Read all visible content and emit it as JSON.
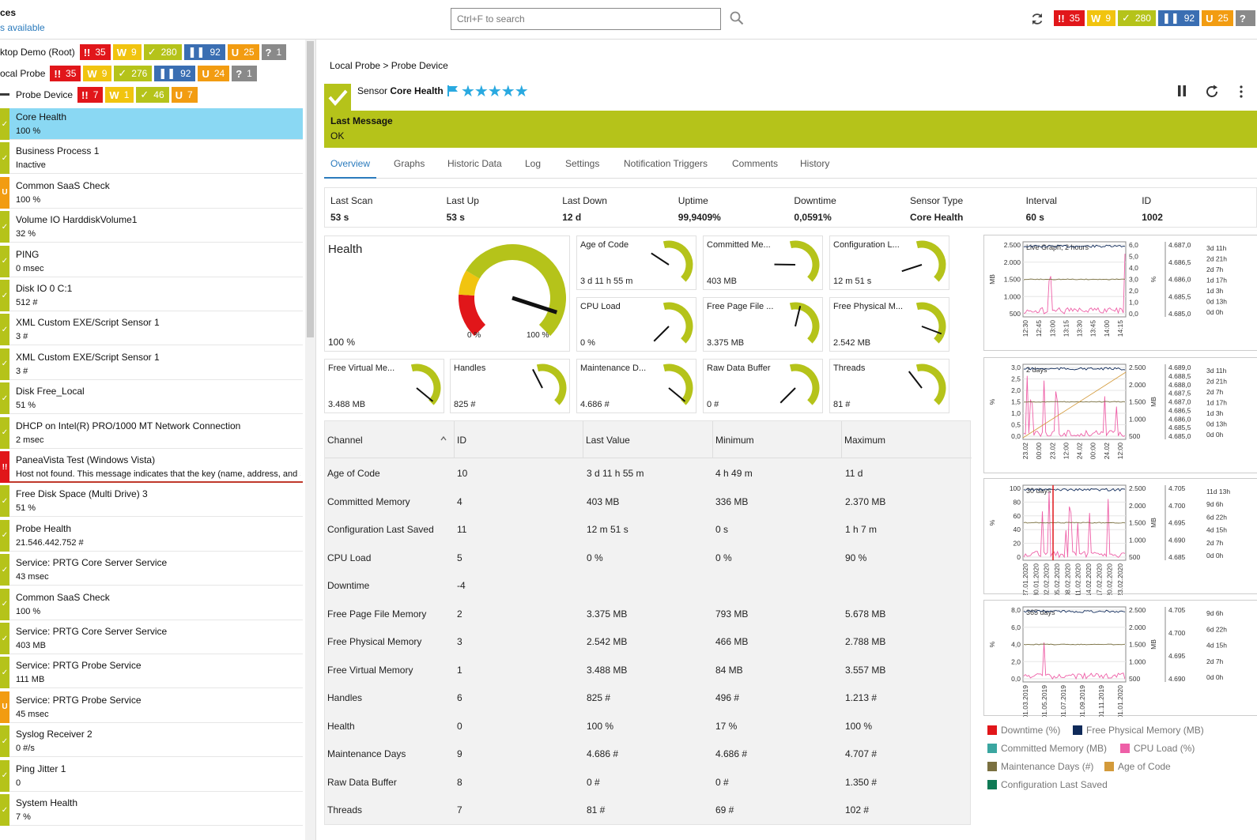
{
  "header": {
    "title_fragment": "ces",
    "subtitle_fragment": "s available",
    "search_placeholder": "Ctrl+F to search",
    "counts": [
      "35",
      "9",
      "280",
      "92",
      "25"
    ]
  },
  "tree": [
    {
      "label": "ktop Demo (Root)",
      "badges": [
        [
          "red",
          "!!",
          "35"
        ],
        [
          "yellow",
          "W",
          "9"
        ],
        [
          "green",
          "✓",
          "280"
        ],
        [
          "blue",
          "❚❚",
          "92"
        ],
        [
          "orange",
          "U",
          "25"
        ],
        [
          "gray",
          "?",
          "1"
        ]
      ]
    },
    {
      "label": "ocal Probe",
      "badges": [
        [
          "red",
          "!!",
          "35"
        ],
        [
          "yellow",
          "W",
          "9"
        ],
        [
          "green",
          "✓",
          "276"
        ],
        [
          "blue",
          "❚❚",
          "92"
        ],
        [
          "orange",
          "U",
          "24"
        ],
        [
          "gray",
          "?",
          "1"
        ]
      ]
    },
    {
      "label": "Probe Device",
      "badges": [
        [
          "red",
          "!!",
          "7"
        ],
        [
          "yellow",
          "W",
          "1"
        ],
        [
          "green",
          "✓",
          "46"
        ],
        [
          "orange",
          "U",
          "7"
        ]
      ]
    }
  ],
  "sensors": [
    {
      "name": "Core Health",
      "value": "100 %",
      "status": "green",
      "selected": true
    },
    {
      "name": "Business Process 1",
      "value": "Inactive",
      "status": "green"
    },
    {
      "name": "Common SaaS Check",
      "value": "100 %",
      "status": "orange"
    },
    {
      "name": "Volume IO HarddiskVolume1",
      "value": "32 %",
      "status": "green"
    },
    {
      "name": "PING",
      "value": "0 msec",
      "status": "green"
    },
    {
      "name": "Disk IO 0 C:1",
      "value": "512 #",
      "status": "green"
    },
    {
      "name": "XML Custom EXE/Script Sensor 1",
      "value": "3 #",
      "status": "green"
    },
    {
      "name": "XML Custom EXE/Script Sensor 1",
      "value": "3 #",
      "status": "green"
    },
    {
      "name": "Disk Free_Local",
      "value": "51 %",
      "status": "green"
    },
    {
      "name": "DHCP on Intel(R) PRO/1000 MT Network Connection",
      "value": "2 msec",
      "status": "green"
    },
    {
      "name": "PaneaVista Test (Windows Vista)",
      "value": "Host not found. This message indicates that the key (name, address, and s...",
      "status": "red"
    },
    {
      "name": "Free Disk Space (Multi Drive) 3",
      "value": "51 %",
      "status": "green"
    },
    {
      "name": "Probe Health",
      "value": "21.546.442.752 #",
      "status": "green"
    },
    {
      "name": "Service: PRTG Core Server Service",
      "value": "43 msec",
      "status": "green"
    },
    {
      "name": "Common SaaS Check",
      "value": "100 %",
      "status": "green"
    },
    {
      "name": "Service: PRTG Core Server Service",
      "value": "403 MB",
      "status": "green"
    },
    {
      "name": "Service: PRTG Probe Service",
      "value": "111 MB",
      "status": "green"
    },
    {
      "name": "Service: PRTG Probe Service",
      "value": "45 msec",
      "status": "orange"
    },
    {
      "name": "Syslog Receiver 2",
      "value": "0 #/s",
      "status": "green"
    },
    {
      "name": "Ping Jitter 1",
      "value": "0",
      "status": "green"
    },
    {
      "name": "System Health",
      "value": "7 %",
      "status": "green"
    }
  ],
  "main": {
    "breadcrumb": "Local Probe > Probe Device",
    "sensor_prefix": "Sensor",
    "sensor_name": "Core Health",
    "last_message_label": "Last Message",
    "last_message": "OK",
    "tabs": [
      "Overview",
      "Graphs",
      "Historic Data",
      "Log",
      "Settings",
      "Notification Triggers",
      "Comments",
      "History"
    ],
    "stats": [
      {
        "label": "Last Scan",
        "value": "53 s"
      },
      {
        "label": "Last Up",
        "value": "53 s"
      },
      {
        "label": "Last Down",
        "value": "12 d"
      },
      {
        "label": "Uptime",
        "value": "99,9409%"
      },
      {
        "label": "Downtime",
        "value": "0,0591%"
      },
      {
        "label": "Sensor Type",
        "value": "Core Health"
      },
      {
        "label": "Interval",
        "value": "60 s"
      },
      {
        "label": "ID",
        "value": "1002"
      }
    ]
  },
  "health_gauge": {
    "title": "Health",
    "value": "100 %",
    "min_label": "0 %",
    "max_label": "100 %",
    "level": 1.0
  },
  "gauges": [
    {
      "title": "Age of Code",
      "value": "3 d 11 h 55 m",
      "level": 0.29
    },
    {
      "title": "Committed Me...",
      "value": "403 MB",
      "level": 0.17
    },
    {
      "title": "Configuration L...",
      "value": "12 m 51 s",
      "level": 0.1
    },
    {
      "title": "CPU Load",
      "value": "0 %",
      "level": 0.0
    },
    {
      "title": "Free Page File ...",
      "value": "3.375 MB",
      "level": 0.55
    },
    {
      "title": "Free Physical M...",
      "value": "2.542 MB",
      "level": 0.91
    },
    {
      "title": "Free Virtual Me...",
      "value": "3.488 MB",
      "level": 0.98
    },
    {
      "title": "Handles",
      "value": "825 #",
      "level": 0.4
    },
    {
      "title": "Maintenance D...",
      "value": "4.686 #",
      "level": 0.98
    },
    {
      "title": "Raw Data Buffer",
      "value": "0 #",
      "level": 0.0
    },
    {
      "title": "Threads",
      "value": "81 #",
      "level": 0.36
    }
  ],
  "table": {
    "headers": [
      "Channel",
      "ID",
      "Last Value",
      "Minimum",
      "Maximum"
    ],
    "rows": [
      [
        "Age of Code",
        "10",
        "3 d 11 h 55 m",
        "4 h 49 m",
        "11 d"
      ],
      [
        "Committed Memory",
        "4",
        "403 MB",
        "336 MB",
        "2.370 MB"
      ],
      [
        "Configuration Last Saved",
        "11",
        "12 m 51 s",
        "0 s",
        "1 h 7 m"
      ],
      [
        "CPU Load",
        "5",
        "0 %",
        "0 %",
        "90 %"
      ],
      [
        "Downtime",
        "-4",
        "",
        "",
        ""
      ],
      [
        "Free Page File Memory",
        "2",
        "3.375 MB",
        "793 MB",
        "5.678 MB"
      ],
      [
        "Free Physical Memory",
        "3",
        "2.542 MB",
        "466 MB",
        "2.788 MB"
      ],
      [
        "Free Virtual Memory",
        "1",
        "3.488 MB",
        "84 MB",
        "3.557 MB"
      ],
      [
        "Handles",
        "6",
        "825 #",
        "496 #",
        "1.213 #"
      ],
      [
        "Health",
        "0",
        "100 %",
        "17 %",
        "100 %"
      ],
      [
        "Maintenance Days",
        "9",
        "4.686 #",
        "4.686 #",
        "4.707 #"
      ],
      [
        "Raw Data Buffer",
        "8",
        "0 #",
        "0 #",
        "1.350 #"
      ],
      [
        "Threads",
        "7",
        "81 #",
        "69 #",
        "102 #"
      ]
    ]
  },
  "graphs": [
    {
      "title": "Live Graph, 2 hours",
      "xticks": [
        "12:30",
        "12:45",
        "13:00",
        "13:15",
        "13:30",
        "13:45",
        "14:00",
        "14:15"
      ],
      "left": [
        "2.500",
        "2.000",
        "1.500",
        "1.000",
        "500"
      ],
      "left_unit": "MB",
      "mid": [
        "6,0",
        "5,0",
        "4,0",
        "3,0",
        "2,0",
        "1,0",
        "0,0"
      ],
      "mid_unit": "%",
      "right": [
        "4.687,0",
        "4.686,5",
        "4.686,0",
        "4.685,5",
        "4.685,0"
      ],
      "far": [
        "3d 11h",
        "2d 21h",
        "2d 7h",
        "1d 17h",
        "1d 3h",
        "0d 13h",
        "0d 0h"
      ]
    },
    {
      "title": "2 days",
      "xticks": [
        "23.02",
        "00:00",
        "23.02",
        "12:00",
        "24.02",
        "00:00",
        "24.02",
        "12:00"
      ],
      "left": [
        "3,0",
        "2,5",
        "2,0",
        "1,5",
        "1,0",
        "0,5",
        "0,0"
      ],
      "left_unit": "%",
      "mid": [
        "2.500",
        "2.000",
        "1.500",
        "1.000",
        "500"
      ],
      "mid_unit": "MB",
      "right": [
        "4.689,0",
        "4.688,5",
        "4.688,0",
        "4.687,5",
        "4.687,0",
        "4.686,5",
        "4.686,0",
        "4.685,5",
        "4.685,0"
      ],
      "far": [
        "3d 11h",
        "2d 21h",
        "2d 7h",
        "1d 17h",
        "1d 3h",
        "0d 13h",
        "0d 0h"
      ]
    },
    {
      "title": "30 days",
      "xticks": [
        "27.01.2020",
        "30.01.2020",
        "02.02.2020",
        "05.02.2020",
        "08.02.2020",
        "11.02.2020",
        "14.02.2020",
        "17.02.2020",
        "20.02.2020",
        "23.02.2020"
      ],
      "left": [
        "100",
        "80",
        "60",
        "40",
        "20",
        "0"
      ],
      "left_unit": "%",
      "mid": [
        "2.500",
        "2.000",
        "1.500",
        "1.000",
        "500"
      ],
      "mid_unit": "MB",
      "right": [
        "4.705",
        "4.700",
        "4.695",
        "4.690",
        "4.685"
      ],
      "far": [
        "11d 13h",
        "9d 6h",
        "6d 22h",
        "4d 15h",
        "2d 7h",
        "0d 0h"
      ]
    },
    {
      "title": "365 days",
      "xticks": [
        "01.03.2019",
        "01.05.2019",
        "01.07.2019",
        "01.09.2019",
        "01.11.2019",
        "01.01.2020"
      ],
      "left": [
        "8,0",
        "6,0",
        "4,0",
        "2,0",
        "0,0"
      ],
      "left_unit": "%",
      "mid": [
        "2.500",
        "2.000",
        "1.500",
        "1.000",
        "500"
      ],
      "mid_unit": "MB",
      "right": [
        "4.705",
        "4.700",
        "4.695",
        "4.690"
      ],
      "far": [
        "9d 6h",
        "6d 22h",
        "4d 15h",
        "2d 7h",
        "0d 0h"
      ]
    }
  ],
  "legend": [
    {
      "label": "Downtime  (%)",
      "color": "#e1161a"
    },
    {
      "label": "Free Physical Memory  (MB)",
      "color": "#0f2a5a"
    },
    {
      "label": "Committed Memory  (MB)",
      "color": "#3aa6a0"
    },
    {
      "label": "CPU Load  (%)",
      "color": "#ee5fa7"
    },
    {
      "label": "Maintenance Days  (#)",
      "color": "#7a7040"
    },
    {
      "label": "Age of Code",
      "color": "#d39a3a"
    },
    {
      "label": "Configuration Last Saved",
      "color": "#0f7a55"
    }
  ],
  "colors": {
    "green": "#b5c31a",
    "red": "#e1161a",
    "orange": "#f29c11",
    "yellow": "#f1c40f",
    "blue": "#3a6eb2",
    "gray": "#8a8a8a",
    "accent": "#2b7bbd",
    "selected": "#8ad8f3"
  }
}
